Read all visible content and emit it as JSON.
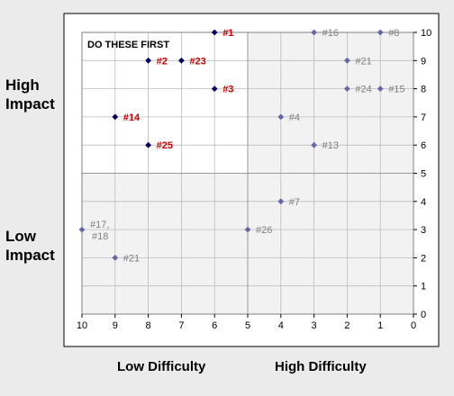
{
  "left_labels": {
    "high_line1": "High",
    "high_line2": "Impact",
    "low_line1": "Low",
    "low_line2": "Impact"
  },
  "bottom_labels": {
    "low_difficulty": "Low Difficulty",
    "high_difficulty": "High Difficulty"
  },
  "quadrant_label": "DO THESE FIRST",
  "colors": {
    "page_background": "#ebebeb",
    "frame_background": "#ffffff",
    "shaded_region": "#f2f2f2",
    "priority_label": "#cc0000",
    "priority_marker": "#000066",
    "other_label": "#808080",
    "other_marker": "#6666aa"
  },
  "chart_data": {
    "type": "scatter",
    "title": "",
    "xlabel": "",
    "ylabel": "",
    "xlim": [
      10,
      0
    ],
    "ylim": [
      0,
      10
    ],
    "x_reversed": true,
    "x_ticks": [
      "10",
      "9",
      "8",
      "7",
      "6",
      "5",
      "4",
      "3",
      "2",
      "1",
      "0"
    ],
    "y_ticks": [
      "0",
      "1",
      "2",
      "3",
      "4",
      "5",
      "6",
      "7",
      "8",
      "9",
      "10"
    ],
    "grid": true,
    "quadrant_divider": {
      "x": 5,
      "y": 5
    },
    "points": [
      {
        "label": "#1",
        "x": 6,
        "y": 10,
        "priority": true
      },
      {
        "label": "#2",
        "x": 8,
        "y": 9,
        "priority": true
      },
      {
        "label": "#23",
        "x": 7,
        "y": 9,
        "priority": true
      },
      {
        "label": "#3",
        "x": 6,
        "y": 8,
        "priority": true
      },
      {
        "label": "#14",
        "x": 9,
        "y": 7,
        "priority": true
      },
      {
        "label": "#25",
        "x": 8,
        "y": 6,
        "priority": true
      },
      {
        "label": "#16",
        "x": 3,
        "y": 10,
        "priority": false
      },
      {
        "label": "#8",
        "x": 1,
        "y": 10,
        "priority": false
      },
      {
        "label": "#21",
        "x": 2,
        "y": 9,
        "priority": false
      },
      {
        "label": "#24",
        "x": 2,
        "y": 8,
        "priority": false
      },
      {
        "label": "#15",
        "x": 1,
        "y": 8,
        "priority": false
      },
      {
        "label": "#4",
        "x": 4,
        "y": 7,
        "priority": false
      },
      {
        "label": "#13",
        "x": 3,
        "y": 6,
        "priority": false
      },
      {
        "label": "#7",
        "x": 4,
        "y": 4,
        "priority": false
      },
      {
        "label": "#26",
        "x": 5,
        "y": 3,
        "priority": false
      },
      {
        "label": "#17,\n#18",
        "x": 10,
        "y": 3,
        "priority": false
      },
      {
        "label": "#21",
        "x": 9,
        "y": 2,
        "priority": false
      }
    ]
  }
}
